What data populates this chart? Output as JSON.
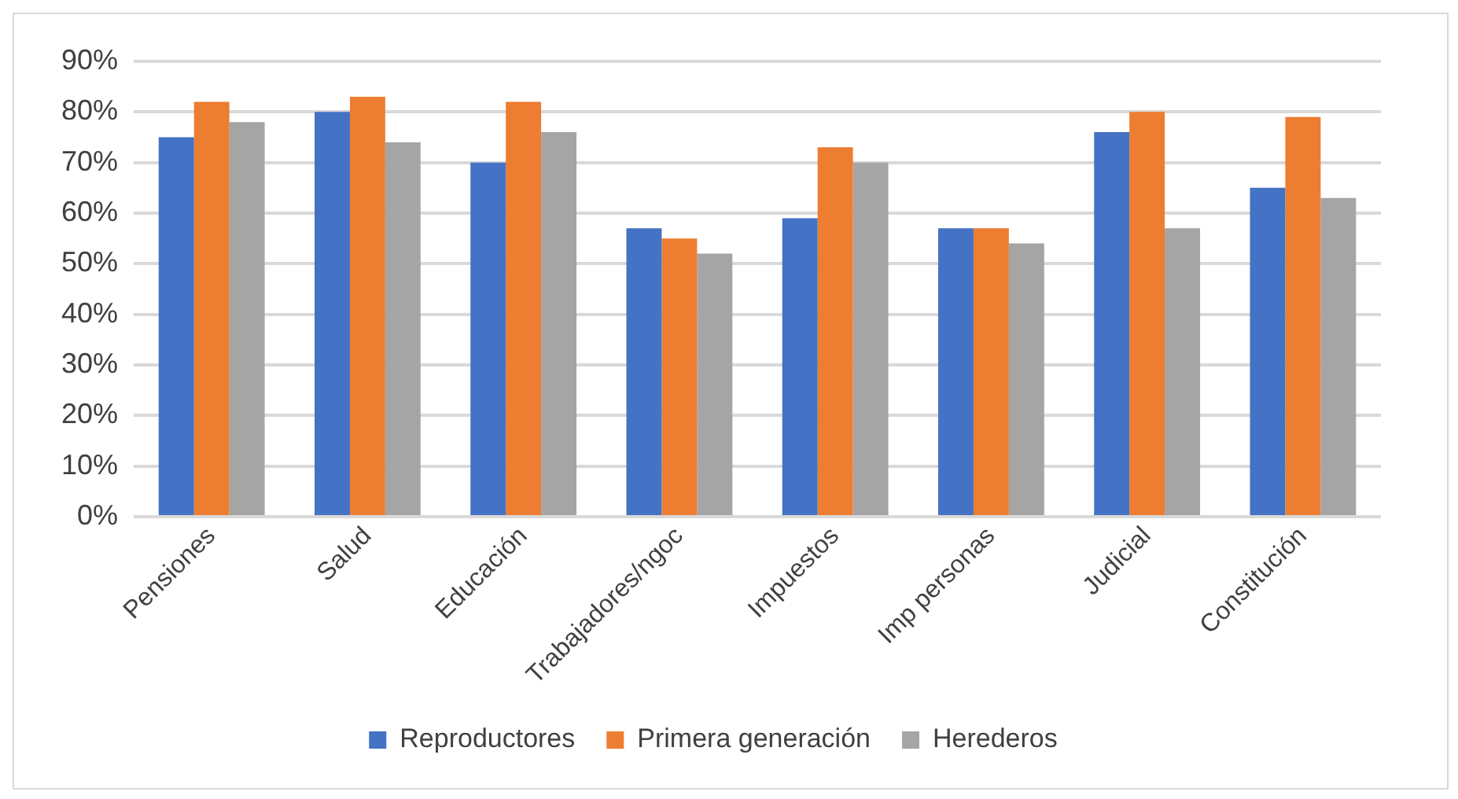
{
  "chart_data": {
    "type": "bar",
    "categories": [
      "Pensiones",
      "Salud",
      "Educación",
      "Trabajadores/ngoc",
      "Impuestos",
      "Imp personas",
      "Judicial",
      "Constitución"
    ],
    "series": [
      {
        "name": "Reproductores",
        "color": "#4472c4",
        "values": [
          75,
          80,
          70,
          57,
          59,
          57,
          76,
          65
        ]
      },
      {
        "name": "Primera generación",
        "color": "#ed7d31",
        "values": [
          82,
          83,
          82,
          55,
          73,
          57,
          80,
          79
        ]
      },
      {
        "name": "Herederos",
        "color": "#a5a5a5",
        "values": [
          78,
          74,
          76,
          52,
          70,
          54,
          57,
          63
        ]
      }
    ],
    "ylim": [
      0,
      90
    ],
    "yticks": [
      {
        "value": 0,
        "label": "0%"
      },
      {
        "value": 10,
        "label": "10%"
      },
      {
        "value": 20,
        "label": "20%"
      },
      {
        "value": 30,
        "label": "30%"
      },
      {
        "value": 40,
        "label": "40%"
      },
      {
        "value": 50,
        "label": "50%"
      },
      {
        "value": 60,
        "label": "60%"
      },
      {
        "value": 70,
        "label": "70%"
      },
      {
        "value": 80,
        "label": "80%"
      },
      {
        "value": 90,
        "label": "90%"
      }
    ],
    "grid": "y",
    "legend": "bottom"
  }
}
